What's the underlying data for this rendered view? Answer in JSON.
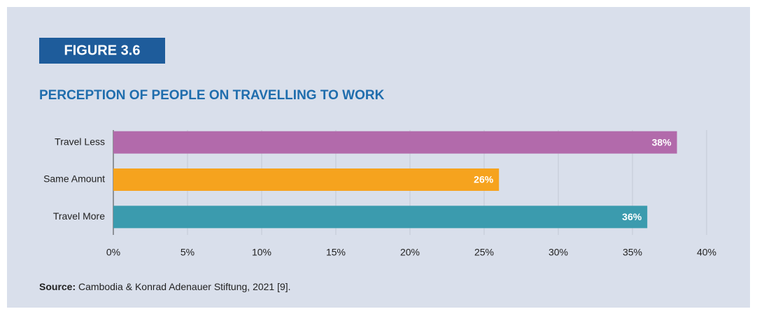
{
  "figure_label": "FIGURE 3.6",
  "source": {
    "label": "Source:",
    "text": "Cambodia & Konrad Adenauer Stiftung, 2021 [9]."
  },
  "chart_data": {
    "type": "hbar",
    "title": "PERCEPTION OF PEOPLE ON TRAVELLING TO WORK",
    "categories": [
      "Travel Less",
      "Same Amount",
      "Travel More"
    ],
    "values": [
      38,
      26,
      36
    ],
    "value_labels": [
      "38%",
      "26%",
      "36%"
    ],
    "colors": [
      "#b26aab",
      "#f6a31e",
      "#3b9bae"
    ],
    "xlim": [
      0,
      40
    ],
    "xticks": [
      {
        "value": 0,
        "label": "0%"
      },
      {
        "value": 5,
        "label": "5%"
      },
      {
        "value": 10,
        "label": "10%"
      },
      {
        "value": 15,
        "label": "15%"
      },
      {
        "value": 20,
        "label": "20%"
      },
      {
        "value": 25,
        "label": "25%"
      },
      {
        "value": 30,
        "label": "30%"
      },
      {
        "value": 35,
        "label": "35%"
      },
      {
        "value": 40,
        "label": "40%"
      }
    ],
    "grid": true
  }
}
